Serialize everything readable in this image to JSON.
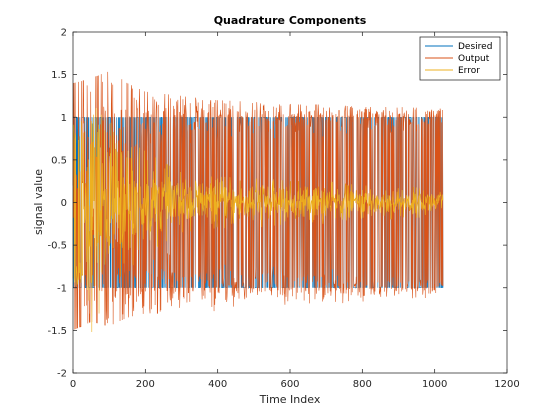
{
  "chart_data": {
    "type": "line",
    "title": "Quadrature Components",
    "xlabel": "Time Index",
    "ylabel": "signal value",
    "xlim": [
      0,
      1200
    ],
    "ylim": [
      -2,
      2
    ],
    "x_ticks": [
      0,
      200,
      400,
      600,
      800,
      1000,
      1200
    ],
    "y_ticks": [
      -2,
      -1.5,
      -1,
      -0.5,
      0,
      0.5,
      1,
      1.5,
      2
    ],
    "x_tick_labels": [
      "0",
      "200",
      "400",
      "600",
      "800",
      "1000",
      "1200"
    ],
    "y_tick_labels": [
      "-2",
      "-1.5",
      "-1",
      "-0.5",
      "0",
      "0.5",
      "1",
      "1.5",
      "2"
    ],
    "grid": false,
    "legend_position": "top-right",
    "n_samples": 1024,
    "series": [
      {
        "name": "Desired",
        "color": "#0072BD",
        "values_description_free": true,
        "levels": [
          -1,
          1
        ]
      },
      {
        "name": "Output",
        "color": "#D95319",
        "envelope_x": [
          0,
          50,
          100,
          150,
          200,
          300,
          400,
          500,
          600,
          700,
          800,
          900,
          1024
        ],
        "envelope_max": [
          1.4,
          1.45,
          1.55,
          1.4,
          1.3,
          1.25,
          1.2,
          1.18,
          1.15,
          1.15,
          1.12,
          1.12,
          1.1
        ],
        "envelope_min": [
          -1.5,
          -1.4,
          -1.45,
          -1.35,
          -1.3,
          -1.3,
          -1.3,
          -1.38,
          -1.25,
          -1.2,
          -1.2,
          -1.15,
          -1.1
        ]
      },
      {
        "name": "Error",
        "color": "#EDB120",
        "envelope_x": [
          0,
          30,
          40,
          60,
          100,
          200,
          300,
          400,
          500,
          600,
          700,
          800,
          900,
          1024
        ],
        "envelope_max": [
          1.0,
          1.0,
          1.4,
          1.4,
          1.0,
          0.6,
          0.35,
          0.3,
          0.3,
          0.25,
          0.25,
          0.2,
          0.2,
          0.15
        ],
        "envelope_min": [
          -1.0,
          -1.0,
          -1.9,
          -1.6,
          -1.0,
          -0.6,
          -0.35,
          -0.3,
          -0.3,
          -0.25,
          -0.25,
          -0.2,
          -0.2,
          -0.15
        ]
      }
    ]
  }
}
